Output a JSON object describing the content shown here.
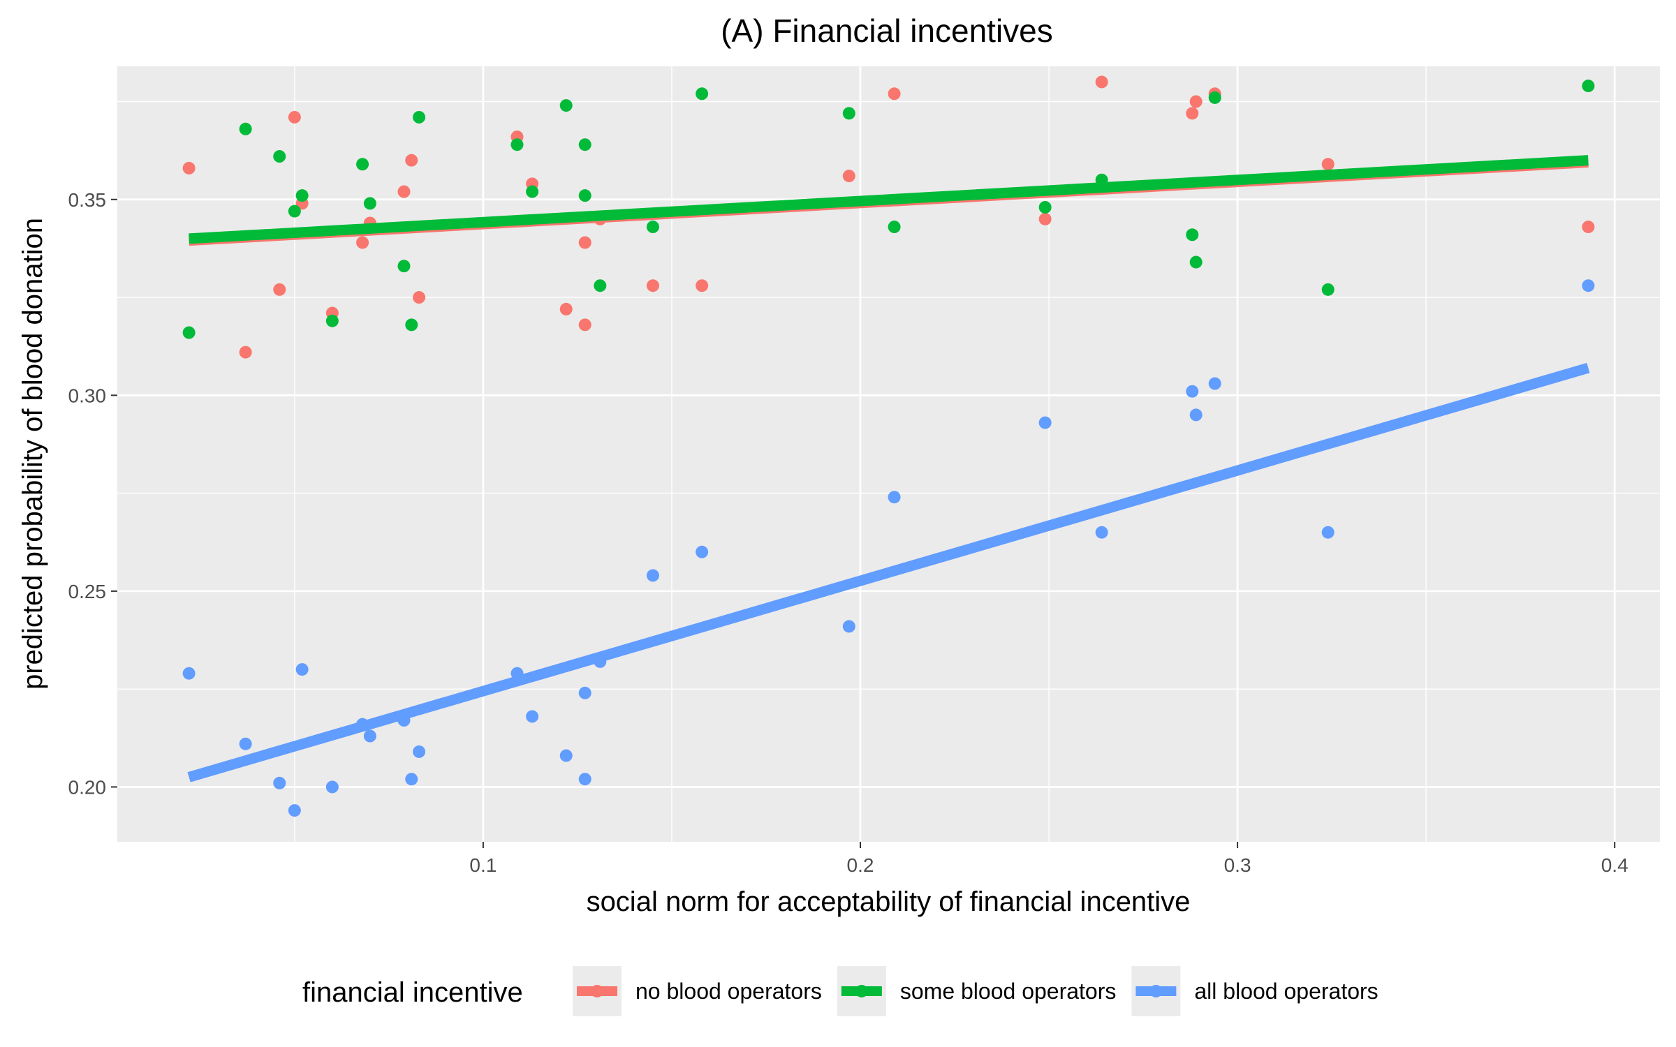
{
  "chart_data": {
    "type": "scatter",
    "title": "(A) Financial incentives",
    "xlabel": "social norm for acceptability of financial incentive",
    "ylabel": "predicted probability of blood donation",
    "xlim": [
      0.003,
      0.412
    ],
    "ylim": [
      0.186,
      0.384
    ],
    "x_ticks": [
      0.1,
      0.2,
      0.3,
      0.4
    ],
    "x_tick_labels": [
      "0.1",
      "0.2",
      "0.3",
      "0.4"
    ],
    "y_ticks": [
      0.2,
      0.25,
      0.3,
      0.35
    ],
    "y_tick_labels": [
      "0.20",
      "0.25",
      "0.30",
      "0.35"
    ],
    "grid": true,
    "legend": {
      "title": "financial incentive",
      "position": "bottom"
    },
    "series": [
      {
        "name": "no blood operators",
        "color": "#f8766d",
        "points": [
          [
            0.022,
            0.358
          ],
          [
            0.037,
            0.311
          ],
          [
            0.046,
            0.327
          ],
          [
            0.05,
            0.371
          ],
          [
            0.052,
            0.349
          ],
          [
            0.06,
            0.321
          ],
          [
            0.068,
            0.339
          ],
          [
            0.07,
            0.344
          ],
          [
            0.079,
            0.352
          ],
          [
            0.081,
            0.36
          ],
          [
            0.083,
            0.325
          ],
          [
            0.109,
            0.366
          ],
          [
            0.113,
            0.354
          ],
          [
            0.122,
            0.322
          ],
          [
            0.127,
            0.339
          ],
          [
            0.127,
            0.318
          ],
          [
            0.131,
            0.345
          ],
          [
            0.145,
            0.328
          ],
          [
            0.158,
            0.328
          ],
          [
            0.197,
            0.356
          ],
          [
            0.209,
            0.377
          ],
          [
            0.249,
            0.345
          ],
          [
            0.264,
            0.38
          ],
          [
            0.288,
            0.372
          ],
          [
            0.289,
            0.375
          ],
          [
            0.294,
            0.377
          ],
          [
            0.324,
            0.359
          ],
          [
            0.393,
            0.343
          ]
        ],
        "fit": [
          [
            0.022,
            0.3395
          ],
          [
            0.393,
            0.3595
          ]
        ]
      },
      {
        "name": "some blood operators",
        "color": "#00ba38",
        "points": [
          [
            0.022,
            0.316
          ],
          [
            0.037,
            0.368
          ],
          [
            0.046,
            0.361
          ],
          [
            0.05,
            0.347
          ],
          [
            0.052,
            0.351
          ],
          [
            0.06,
            0.319
          ],
          [
            0.068,
            0.359
          ],
          [
            0.07,
            0.349
          ],
          [
            0.079,
            0.333
          ],
          [
            0.081,
            0.318
          ],
          [
            0.083,
            0.371
          ],
          [
            0.109,
            0.364
          ],
          [
            0.113,
            0.352
          ],
          [
            0.122,
            0.374
          ],
          [
            0.127,
            0.364
          ],
          [
            0.127,
            0.351
          ],
          [
            0.131,
            0.328
          ],
          [
            0.145,
            0.343
          ],
          [
            0.158,
            0.377
          ],
          [
            0.197,
            0.372
          ],
          [
            0.209,
            0.343
          ],
          [
            0.249,
            0.348
          ],
          [
            0.264,
            0.355
          ],
          [
            0.288,
            0.341
          ],
          [
            0.289,
            0.334
          ],
          [
            0.294,
            0.376
          ],
          [
            0.324,
            0.327
          ],
          [
            0.393,
            0.379
          ]
        ],
        "fit": [
          [
            0.022,
            0.34
          ],
          [
            0.393,
            0.36
          ]
        ]
      },
      {
        "name": "all blood operators",
        "color": "#619cff",
        "points": [
          [
            0.022,
            0.229
          ],
          [
            0.037,
            0.211
          ],
          [
            0.046,
            0.201
          ],
          [
            0.05,
            0.194
          ],
          [
            0.052,
            0.23
          ],
          [
            0.06,
            0.2
          ],
          [
            0.068,
            0.216
          ],
          [
            0.07,
            0.213
          ],
          [
            0.079,
            0.217
          ],
          [
            0.081,
            0.202
          ],
          [
            0.083,
            0.209
          ],
          [
            0.109,
            0.229
          ],
          [
            0.113,
            0.218
          ],
          [
            0.122,
            0.208
          ],
          [
            0.127,
            0.224
          ],
          [
            0.127,
            0.202
          ],
          [
            0.131,
            0.232
          ],
          [
            0.145,
            0.254
          ],
          [
            0.158,
            0.26
          ],
          [
            0.197,
            0.241
          ],
          [
            0.209,
            0.274
          ],
          [
            0.249,
            0.293
          ],
          [
            0.264,
            0.265
          ],
          [
            0.288,
            0.301
          ],
          [
            0.289,
            0.295
          ],
          [
            0.294,
            0.303
          ],
          [
            0.324,
            0.265
          ],
          [
            0.393,
            0.328
          ]
        ],
        "fit": [
          [
            0.022,
            0.2025
          ],
          [
            0.393,
            0.307
          ]
        ]
      }
    ]
  }
}
